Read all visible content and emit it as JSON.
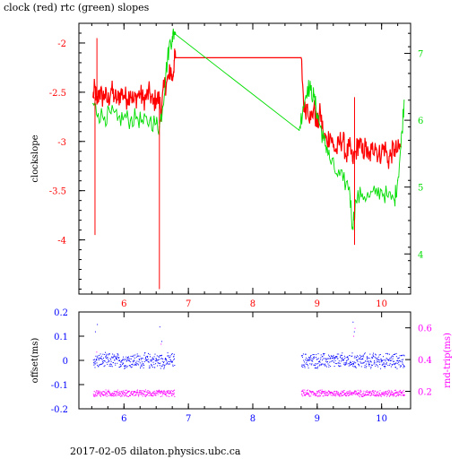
{
  "footer_text": "2017-02-05  dilaton.physics.ubc.ca",
  "colors": {
    "red": "#ff0000",
    "green": "#00dd00",
    "blue": "#0000ff",
    "magenta": "#ff00ff",
    "black": "#000000"
  },
  "chart_data": [
    {
      "type": "line",
      "title": "clock (red) rtc (green) slopes",
      "xlabel": "",
      "ylabel": "clockslope",
      "xlim": [
        5.3,
        10.45
      ],
      "ylim": [
        -4.55,
        -1.8
      ],
      "xticks": [
        6,
        7,
        8,
        9,
        10
      ],
      "yticks": [
        -4,
        -3.5,
        -3,
        -2.5,
        -2
      ],
      "y2lim": [
        3.4,
        7.45
      ],
      "y2ticks": [
        4,
        5,
        6,
        7
      ],
      "series": [
        {
          "axis": "left",
          "color": "#ff0000",
          "x": [
            5.52,
            5.55,
            5.58,
            5.62,
            5.66,
            5.7,
            5.75,
            5.8,
            5.85,
            5.9,
            5.95,
            6.0,
            6.05,
            6.1,
            6.15,
            6.2,
            6.25,
            6.3,
            6.35,
            6.4,
            6.45,
            6.5,
            6.55,
            6.58,
            6.62,
            6.66,
            6.7,
            6.72,
            6.75,
            6.78,
            6.8,
            8.75,
            8.8,
            8.85,
            8.9,
            8.95,
            9.0,
            9.05,
            9.1,
            9.15,
            9.2,
            9.25,
            9.3,
            9.35,
            9.4,
            9.45,
            9.5,
            9.55,
            9.6,
            9.65,
            9.7,
            9.75,
            9.8,
            9.85,
            9.9,
            9.95,
            10.0,
            10.05,
            10.1,
            10.15,
            10.2,
            10.25,
            10.3
          ],
          "y": [
            -2.55,
            -2.45,
            -2.62,
            -2.48,
            -2.56,
            -2.52,
            -2.6,
            -2.47,
            -2.55,
            -2.58,
            -2.5,
            -2.53,
            -2.57,
            -2.49,
            -2.6,
            -2.54,
            -2.51,
            -2.58,
            -2.55,
            -2.5,
            -2.62,
            -2.56,
            -2.58,
            -2.7,
            -2.45,
            -2.4,
            -2.35,
            -2.25,
            -2.38,
            -2.18,
            -2.15,
            -2.15,
            -2.7,
            -2.62,
            -2.78,
            -2.65,
            -2.85,
            -2.7,
            -2.95,
            -3.0,
            -2.92,
            -3.05,
            -3.1,
            -3.0,
            -2.98,
            -3.15,
            -3.05,
            -3.2,
            -3.1,
            -3.0,
            -3.12,
            -3.05,
            -3.18,
            -3.08,
            -3.02,
            -3.15,
            -3.1,
            -3.05,
            -3.2,
            -3.12,
            -3.08,
            -3.1,
            -3.05
          ]
        },
        {
          "axis": "right",
          "color": "#00dd00",
          "x": [
            5.52,
            5.6,
            5.7,
            5.8,
            5.9,
            6.0,
            6.1,
            6.2,
            6.3,
            6.4,
            6.5,
            6.55,
            6.6,
            6.65,
            6.7,
            6.75,
            6.78,
            8.72,
            8.78,
            8.85,
            8.9,
            8.95,
            9.0,
            9.05,
            9.1,
            9.15,
            9.2,
            9.3,
            9.4,
            9.5,
            9.55,
            9.6,
            9.7,
            9.8,
            9.9,
            10.0,
            10.1,
            10.2,
            10.25,
            10.3,
            10.35
          ],
          "y": [
            6.25,
            6.1,
            6.05,
            6.1,
            6.0,
            6.05,
            6.0,
            6.05,
            5.95,
            6.0,
            5.95,
            5.9,
            6.2,
            6.7,
            7.1,
            7.25,
            7.3,
            5.85,
            6.2,
            6.5,
            6.45,
            6.35,
            6.1,
            5.9,
            5.7,
            5.6,
            5.4,
            5.2,
            5.1,
            5.0,
            4.4,
            4.8,
            4.9,
            4.85,
            4.9,
            4.95,
            4.85,
            4.8,
            5.1,
            5.6,
            6.3
          ]
        }
      ]
    },
    {
      "type": "scatter",
      "title": "",
      "xlabel": "",
      "ylabel": "offset(ms)",
      "y2label": "rnd-trip(ms)",
      "xlim": [
        5.3,
        10.45
      ],
      "ylim": [
        -0.2,
        0.2
      ],
      "xticks": [
        6,
        7,
        8,
        9,
        10
      ],
      "yticks": [
        -0.2,
        -0.1,
        0,
        0.1,
        0.2
      ],
      "y2lim": [
        0.09,
        0.7
      ],
      "y2ticks": [
        0.2,
        0.4,
        0.6
      ],
      "series": [
        {
          "axis": "left",
          "color": "#0000ff",
          "x_ranges": [
            [
              5.52,
              6.78
            ],
            [
              8.75,
              10.35
            ]
          ],
          "center": 0.0,
          "spread": 0.03
        },
        {
          "axis": "right",
          "color": "#ff00ff",
          "x_ranges": [
            [
              5.52,
              6.78
            ],
            [
              8.75,
              10.35
            ]
          ],
          "center": 0.19,
          "spread": 0.02
        }
      ]
    }
  ]
}
